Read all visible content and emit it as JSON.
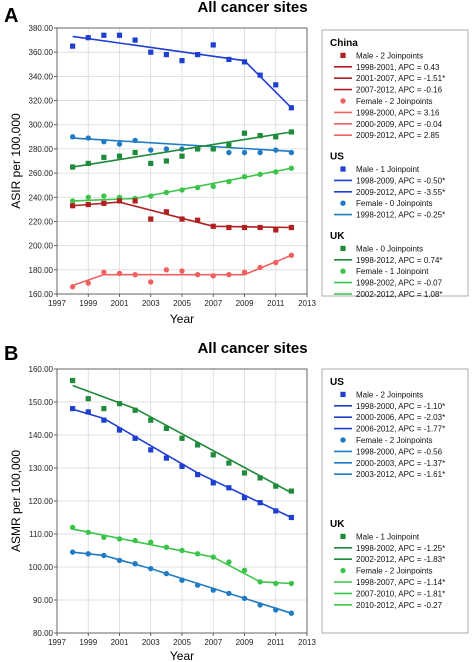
{
  "chart_data": [
    {
      "panel": "A",
      "type": "scatter",
      "title": "All cancer sites",
      "xlabel": "Year",
      "ylabel": "ASIR per 100,000",
      "xlim": [
        1997,
        2013
      ],
      "ylim": [
        160,
        380
      ],
      "xticks": [
        1997,
        1999,
        2001,
        2003,
        2005,
        2007,
        2009,
        2011,
        2013
      ],
      "yticks": [
        160,
        180,
        200,
        220,
        240,
        260,
        280,
        300,
        320,
        340,
        360,
        380
      ],
      "ytick_labels": [
        "160.00",
        "180.00",
        "200.00",
        "220.00",
        "240.00",
        "260.00",
        "280.00",
        "300.00",
        "320.00",
        "340.00",
        "360.00",
        "380.00"
      ],
      "grid": true,
      "series": [
        {
          "id": "us_male",
          "color": "#1f3fd1",
          "marker": "square",
          "x": [
            1998,
            1999,
            2000,
            2001,
            2002,
            2003,
            2004,
            2005,
            2006,
            2007,
            2008,
            2009,
            2010,
            2011,
            2012
          ],
          "y": [
            365,
            372,
            374,
            374,
            370,
            360,
            358,
            353,
            358,
            366,
            354,
            352,
            341,
            333,
            314
          ],
          "fit": [
            [
              1998,
              373
            ],
            [
              2009,
              353
            ],
            [
              2012,
              314
            ]
          ]
        },
        {
          "id": "us_female",
          "color": "#1f7bc4",
          "marker": "circle",
          "x": [
            1998,
            1999,
            2000,
            2001,
            2002,
            2003,
            2004,
            2005,
            2006,
            2007,
            2008,
            2009,
            2010,
            2011,
            2012
          ],
          "y": [
            290,
            289,
            286,
            284,
            287,
            279,
            280,
            280,
            280,
            280,
            277,
            277,
            277,
            279,
            277
          ],
          "fit": [
            [
              1998,
              289
            ],
            [
              2012,
              278
            ]
          ]
        },
        {
          "id": "uk_male",
          "color": "#1e8a3a",
          "marker": "square",
          "x": [
            1998,
            1999,
            2000,
            2001,
            2002,
            2003,
            2004,
            2005,
            2006,
            2007,
            2008,
            2009,
            2010,
            2011,
            2012
          ],
          "y": [
            265,
            268,
            273,
            274,
            277,
            268,
            270,
            274,
            280,
            280,
            283,
            293,
            291,
            290,
            294
          ],
          "fit": [
            [
              1998,
              265
            ],
            [
              2012,
              294
            ]
          ]
        },
        {
          "id": "uk_female",
          "color": "#3cc44a",
          "marker": "circle",
          "x": [
            1998,
            1999,
            2000,
            2001,
            2002,
            2003,
            2004,
            2005,
            2006,
            2007,
            2008,
            2009,
            2010,
            2011,
            2012
          ],
          "y": [
            237,
            240,
            241,
            240,
            239,
            241,
            244,
            246,
            248,
            249,
            253,
            257,
            259,
            261,
            264
          ],
          "fit": [
            [
              1998,
              237
            ],
            [
              2002,
              239
            ],
            [
              2012,
              264
            ]
          ]
        },
        {
          "id": "china_male",
          "color": "#b02020",
          "marker": "square",
          "x": [
            1998,
            1999,
            2000,
            2001,
            2002,
            2003,
            2004,
            2005,
            2006,
            2007,
            2008,
            2009,
            2010,
            2011,
            2012
          ],
          "y": [
            233,
            234,
            235,
            237,
            237,
            222,
            228,
            222,
            221,
            216,
            215,
            215,
            215,
            213,
            215
          ],
          "fit": [
            [
              1998,
              233
            ],
            [
              2001,
              236
            ],
            [
              2007,
              216
            ],
            [
              2012,
              215
            ]
          ]
        },
        {
          "id": "china_female",
          "color": "#f06060",
          "marker": "circle",
          "x": [
            1998,
            1999,
            2000,
            2001,
            2002,
            2003,
            2004,
            2005,
            2006,
            2007,
            2008,
            2009,
            2010,
            2011,
            2012
          ],
          "y": [
            166,
            169,
            178,
            177,
            176,
            170,
            180,
            179,
            176,
            175,
            176,
            178,
            182,
            186,
            192
          ],
          "fit": [
            [
              1998,
              167
            ],
            [
              2000,
              176
            ],
            [
              2009,
              176
            ],
            [
              2012,
              192
            ]
          ]
        }
      ],
      "legend": {
        "placement": "right",
        "groups": [
          {
            "heading": "China",
            "entries": [
              {
                "kind": "marker",
                "series": "china_male",
                "marker": "square",
                "color": "#b02020",
                "label": "Male - 2 Joinpoints"
              },
              {
                "kind": "line",
                "color": "#b02020",
                "label": "1998-2001, APC = 0.43"
              },
              {
                "kind": "line",
                "color": "#b02020",
                "label": "2001-2007, APC = -1.51*"
              },
              {
                "kind": "line",
                "color": "#b02020",
                "label": "2007-2012, APC = -0.16"
              },
              {
                "kind": "marker",
                "series": "china_female",
                "marker": "circle",
                "color": "#f06060",
                "label": "Female - 2 Joinpoints"
              },
              {
                "kind": "line",
                "color": "#f06060",
                "label": "1998-2000, APC = 3.16"
              },
              {
                "kind": "line",
                "color": "#f06060",
                "label": "2000-2009, APC = -0.04"
              },
              {
                "kind": "line",
                "color": "#f06060",
                "label": "2009-2012, APC = 2.85"
              }
            ]
          },
          {
            "heading": "US",
            "entries": [
              {
                "kind": "marker",
                "series": "us_male",
                "marker": "square",
                "color": "#1f3fd1",
                "label": "Male - 1 Joinpoint"
              },
              {
                "kind": "line",
                "color": "#1f3fd1",
                "label": "1998-2009, APC = -0.50*"
              },
              {
                "kind": "line",
                "color": "#1f3fd1",
                "label": "2009-2012, APC = -3.55*"
              },
              {
                "kind": "marker",
                "series": "us_female",
                "marker": "circle",
                "color": "#1f7bc4",
                "label": "Female - 0 Joinpoints"
              },
              {
                "kind": "line",
                "color": "#1f7bc4",
                "label": "1998-2012, APC = -0.25*"
              }
            ]
          },
          {
            "heading": "UK",
            "entries": [
              {
                "kind": "marker",
                "series": "uk_male",
                "marker": "square",
                "color": "#1e8a3a",
                "label": "Male - 0 Joinpoints"
              },
              {
                "kind": "line",
                "color": "#1e8a3a",
                "label": "1998-2012, APC = 0.74*"
              },
              {
                "kind": "marker",
                "series": "uk_female",
                "marker": "circle",
                "color": "#3cc44a",
                "label": "Female - 1 Joinpoint"
              },
              {
                "kind": "line",
                "color": "#3cc44a",
                "label": "1998-2002, APC = -0.07"
              },
              {
                "kind": "line",
                "color": "#3cc44a",
                "label": "2002-2012, APC = 1.08*"
              }
            ]
          }
        ]
      }
    },
    {
      "panel": "B",
      "type": "scatter",
      "title": "All cancer sites",
      "xlabel": "Year",
      "ylabel": "ASMR per 100,000",
      "xlim": [
        1997,
        2013
      ],
      "ylim": [
        80,
        160
      ],
      "xticks": [
        1997,
        1999,
        2001,
        2003,
        2005,
        2007,
        2009,
        2011,
        2013
      ],
      "yticks": [
        80,
        90,
        100,
        110,
        120,
        130,
        140,
        150,
        160
      ],
      "ytick_labels": [
        "80.00",
        "90.00",
        "100.00",
        "110.00",
        "120.00",
        "130.00",
        "140.00",
        "150.00",
        "160.00"
      ],
      "grid": true,
      "series": [
        {
          "id": "uk_male_b",
          "color": "#1e8a3a",
          "marker": "square",
          "x": [
            1998,
            1999,
            2000,
            2001,
            2002,
            2003,
            2004,
            2005,
            2006,
            2007,
            2008,
            2009,
            2010,
            2011,
            2012
          ],
          "y": [
            156.5,
            151,
            148,
            149.5,
            147.5,
            144.5,
            142,
            139,
            137,
            134,
            131.5,
            128.5,
            127,
            124.5,
            123
          ],
          "fit": [
            [
              1998,
              155
            ],
            [
              2002,
              148
            ],
            [
              2012,
              122.5
            ]
          ]
        },
        {
          "id": "us_male_b",
          "color": "#1f3fd1",
          "marker": "square",
          "x": [
            1998,
            1999,
            2000,
            2001,
            2002,
            2003,
            2004,
            2005,
            2006,
            2007,
            2008,
            2009,
            2010,
            2011,
            2012
          ],
          "y": [
            148,
            147,
            144.5,
            141.5,
            139,
            135.5,
            133,
            130.5,
            128,
            125.5,
            124,
            121,
            119.5,
            117,
            115
          ],
          "fit": [
            [
              1998,
              147.8
            ],
            [
              2000,
              145
            ],
            [
              2006,
              128.5
            ],
            [
              2012,
              115
            ]
          ]
        },
        {
          "id": "uk_female_b",
          "color": "#3cc44a",
          "marker": "circle",
          "x": [
            1998,
            1999,
            2000,
            2001,
            2002,
            2003,
            2004,
            2005,
            2006,
            2007,
            2008,
            2009,
            2010,
            2011,
            2012
          ],
          "y": [
            112,
            110.5,
            109,
            108.5,
            108,
            107.5,
            106,
            105,
            104,
            103,
            101.5,
            99,
            95.5,
            95,
            95
          ],
          "fit": [
            [
              1998,
              111.5
            ],
            [
              2007,
              103
            ],
            [
              2010,
              95.5
            ],
            [
              2012,
              95
            ]
          ]
        },
        {
          "id": "us_female_b",
          "color": "#1f7bc4",
          "marker": "circle",
          "x": [
            1998,
            1999,
            2000,
            2001,
            2002,
            2003,
            2004,
            2005,
            2006,
            2007,
            2008,
            2009,
            2010,
            2011,
            2012
          ],
          "y": [
            104.5,
            104,
            103.5,
            102,
            101,
            99.5,
            98,
            96,
            94.5,
            93,
            92,
            90.5,
            88.5,
            87,
            86
          ],
          "fit": [
            [
              1998,
              104.5
            ],
            [
              2000,
              103.5
            ],
            [
              2003,
              99.5
            ],
            [
              2012,
              86
            ]
          ]
        }
      ],
      "legend": {
        "placement": "right",
        "groups": [
          {
            "heading": "US",
            "entries": [
              {
                "kind": "marker",
                "series": "us_male_b",
                "marker": "square",
                "color": "#1f3fd1",
                "label": "Male - 2 Joinpoints"
              },
              {
                "kind": "line",
                "color": "#1f3fd1",
                "label": "1998-2000, APC = -1.10*"
              },
              {
                "kind": "line",
                "color": "#1f3fd1",
                "label": "2000-2006, APC = -2.03*"
              },
              {
                "kind": "line",
                "color": "#1f3fd1",
                "label": "2006-2012, APC = -1.77*"
              },
              {
                "kind": "marker",
                "series": "us_female_b",
                "marker": "circle",
                "color": "#1f7bc4",
                "label": "Female - 2 Joinpoints"
              },
              {
                "kind": "line",
                "color": "#1f7bc4",
                "label": "1998-2000, APC = -0.56"
              },
              {
                "kind": "line",
                "color": "#1f7bc4",
                "label": "2000-2003, APC = -1.37*"
              },
              {
                "kind": "line",
                "color": "#1f7bc4",
                "label": "2003-2012, APC = -1.61*"
              }
            ]
          },
          {
            "heading": "UK",
            "entries": [
              {
                "kind": "marker",
                "series": "uk_male_b",
                "marker": "square",
                "color": "#1e8a3a",
                "label": "Male - 1 Joinpoint"
              },
              {
                "kind": "line",
                "color": "#1e8a3a",
                "label": "1998-2002, APC = -1.25*"
              },
              {
                "kind": "line",
                "color": "#1e8a3a",
                "label": "2002-2012, APC = -1.83*"
              },
              {
                "kind": "marker",
                "series": "uk_female_b",
                "marker": "circle",
                "color": "#3cc44a",
                "label": "Female - 2 Joinpoints"
              },
              {
                "kind": "line",
                "color": "#3cc44a",
                "label": "1998-2007, APC = -1.14*"
              },
              {
                "kind": "line",
                "color": "#3cc44a",
                "label": "2007-2010, APC = -1.81*"
              },
              {
                "kind": "line",
                "color": "#3cc44a",
                "label": "2010-2012, APC = -0.27"
              }
            ]
          }
        ]
      }
    }
  ]
}
